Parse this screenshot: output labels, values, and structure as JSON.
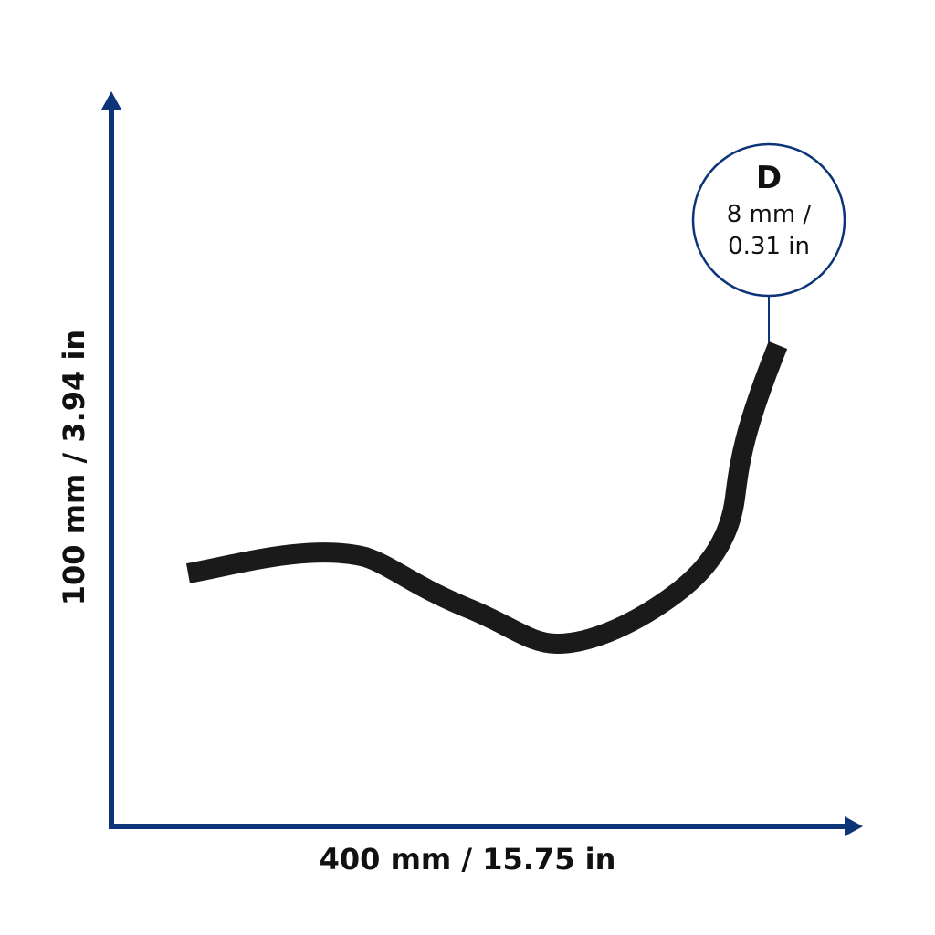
{
  "height_label": "100 mm / 3.94 in",
  "width_label": "400 mm / 15.75 in",
  "callout": {
    "letter": "D",
    "line1": "8 mm /",
    "line2": "0.31 in"
  }
}
